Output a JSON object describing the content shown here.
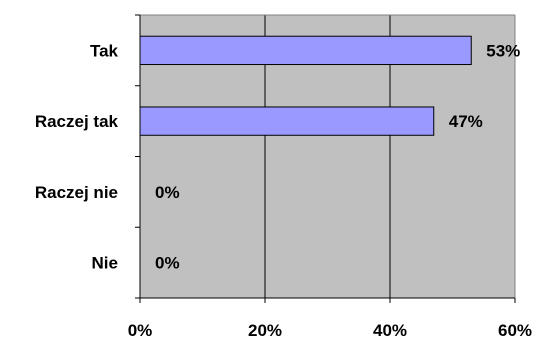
{
  "chart_data": {
    "type": "bar",
    "orientation": "horizontal",
    "title": "",
    "xlabel": "",
    "ylabel": "",
    "categories": [
      "Tak",
      "Raczej tak",
      "Raczej nie",
      "Nie"
    ],
    "values": [
      53,
      47,
      0,
      0
    ],
    "value_labels": [
      "53%",
      "47%",
      "0%",
      "0%"
    ],
    "xlim": [
      0,
      60
    ],
    "xticks": [
      0,
      20,
      40,
      60
    ],
    "xtick_labels": [
      "0%",
      "20%",
      "40%",
      "60%"
    ],
    "grid": "vertical",
    "legend": "none",
    "colors": {
      "bar_fill": "#9999ff",
      "bar_stroke": "#000000",
      "plot_background": "#c0c0c0",
      "gridline": "#000000"
    }
  }
}
